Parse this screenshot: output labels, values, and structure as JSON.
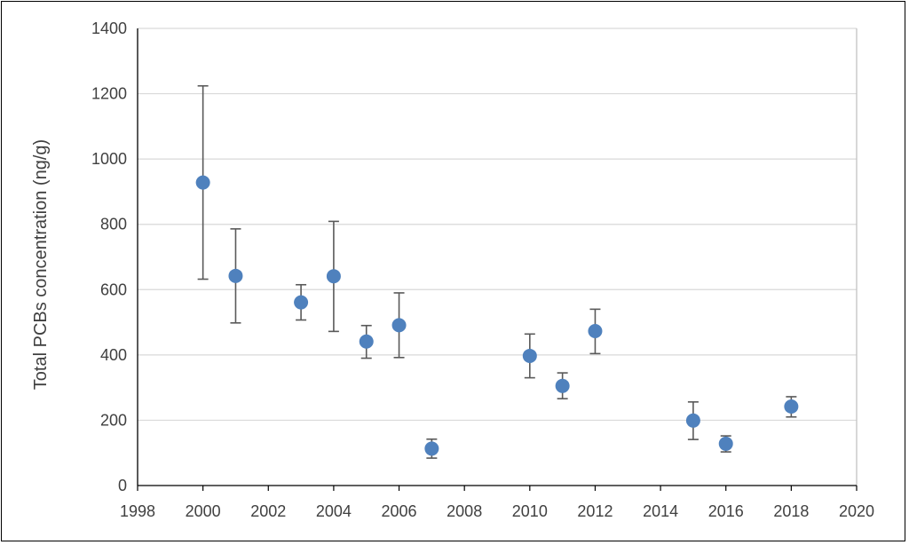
{
  "chart_data": {
    "type": "scatter",
    "title": "",
    "xlabel": "",
    "ylabel": "Total PCBs concentration (ng/g)",
    "xlim": [
      1998,
      2020
    ],
    "ylim": [
      0,
      1400
    ],
    "x_ticks": [
      1998,
      2000,
      2002,
      2004,
      2006,
      2008,
      2010,
      2012,
      2014,
      2016,
      2018,
      2020
    ],
    "y_ticks": [
      0,
      200,
      400,
      600,
      800,
      1000,
      1200,
      1400
    ],
    "grid": "horizontal",
    "legend": "none",
    "marker_color": "#4f81bd",
    "errorbar_color": "#595959",
    "series": [
      {
        "points": [
          {
            "x": 2000,
            "y": 928,
            "err_low": 632,
            "err_high": 1224
          },
          {
            "x": 2001,
            "y": 642,
            "err_low": 498,
            "err_high": 786
          },
          {
            "x": 2003,
            "y": 561,
            "err_low": 507,
            "err_high": 615
          },
          {
            "x": 2004,
            "y": 641,
            "err_low": 472,
            "err_high": 809
          },
          {
            "x": 2005,
            "y": 441,
            "err_low": 390,
            "err_high": 490
          },
          {
            "x": 2006,
            "y": 491,
            "err_low": 392,
            "err_high": 590
          },
          {
            "x": 2007,
            "y": 113,
            "err_low": 84,
            "err_high": 142
          },
          {
            "x": 2010,
            "y": 397,
            "err_low": 330,
            "err_high": 464
          },
          {
            "x": 2011,
            "y": 305,
            "err_low": 266,
            "err_high": 345
          },
          {
            "x": 2012,
            "y": 473,
            "err_low": 404,
            "err_high": 540
          },
          {
            "x": 2015,
            "y": 199,
            "err_low": 141,
            "err_high": 256
          },
          {
            "x": 2016,
            "y": 128,
            "err_low": 103,
            "err_high": 152
          },
          {
            "x": 2018,
            "y": 242,
            "err_low": 210,
            "err_high": 272
          }
        ]
      }
    ]
  }
}
